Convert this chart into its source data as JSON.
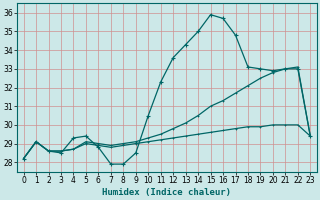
{
  "xlabel": "Humidex (Indice chaleur)",
  "bg_color": "#cce8e8",
  "grid_color": "#d09090",
  "line_color": "#006666",
  "xlim": [
    -0.5,
    23.5
  ],
  "ylim": [
    27.5,
    36.5
  ],
  "yticks": [
    28,
    29,
    30,
    31,
    32,
    33,
    34,
    35,
    36
  ],
  "xticks": [
    0,
    1,
    2,
    3,
    4,
    5,
    6,
    7,
    8,
    9,
    10,
    11,
    12,
    13,
    14,
    15,
    16,
    17,
    18,
    19,
    20,
    21,
    22,
    23
  ],
  "line1_x": [
    0,
    1,
    2,
    3,
    4,
    5,
    6,
    7,
    8,
    9,
    10,
    11,
    12,
    13,
    14,
    15,
    16,
    17,
    18,
    19,
    20,
    21,
    22,
    23
  ],
  "line1_y": [
    28.2,
    29.1,
    28.6,
    28.5,
    29.3,
    29.4,
    28.8,
    27.9,
    27.9,
    28.5,
    30.5,
    32.3,
    33.6,
    34.3,
    35.0,
    35.9,
    35.7,
    34.8,
    33.1,
    33.0,
    32.9,
    33.0,
    33.0,
    29.4
  ],
  "line2_x": [
    0,
    1,
    2,
    3,
    4,
    5,
    6,
    7,
    8,
    9,
    10,
    11,
    12,
    13,
    14,
    15,
    16,
    17,
    18,
    19,
    20,
    21,
    22,
    23
  ],
  "line2_y": [
    28.2,
    29.1,
    28.6,
    28.6,
    28.7,
    29.1,
    29.0,
    28.9,
    29.0,
    29.1,
    29.3,
    29.5,
    29.8,
    30.1,
    30.5,
    31.0,
    31.3,
    31.7,
    32.1,
    32.5,
    32.8,
    33.0,
    33.1,
    29.4
  ],
  "line3_x": [
    0,
    1,
    2,
    3,
    4,
    5,
    6,
    7,
    8,
    9,
    10,
    11,
    12,
    13,
    14,
    15,
    16,
    17,
    18,
    19,
    20,
    21,
    22,
    23
  ],
  "line3_y": [
    28.2,
    29.1,
    28.6,
    28.6,
    28.7,
    29.0,
    28.9,
    28.8,
    28.9,
    29.0,
    29.1,
    29.2,
    29.3,
    29.4,
    29.5,
    29.6,
    29.7,
    29.8,
    29.9,
    29.9,
    30.0,
    30.0,
    30.0,
    29.4
  ]
}
